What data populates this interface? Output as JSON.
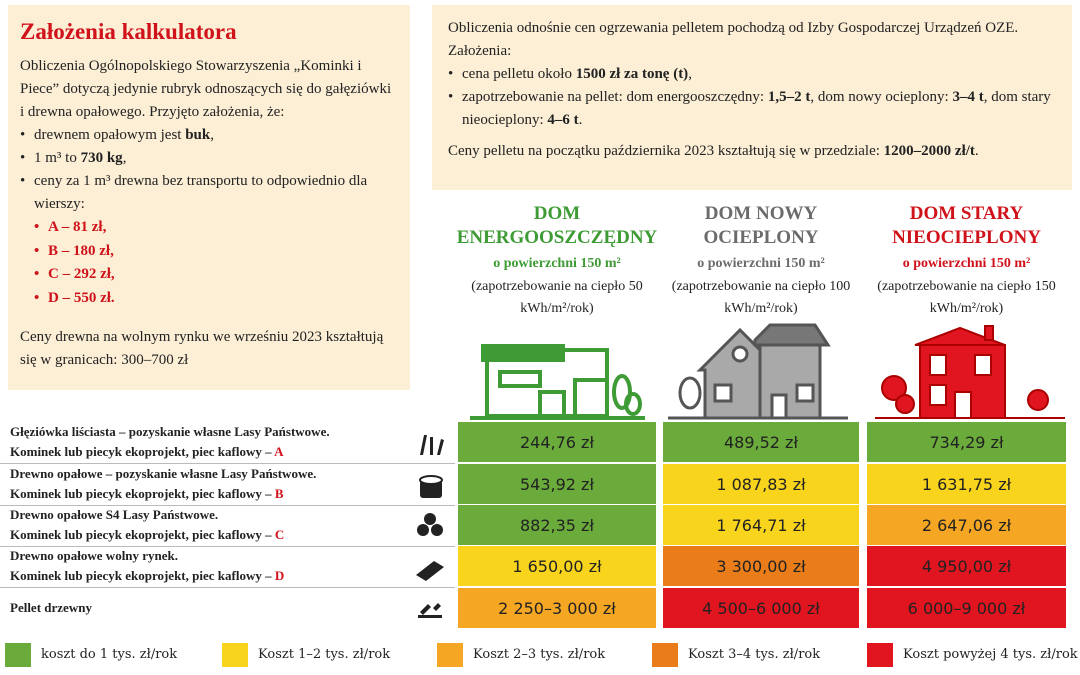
{
  "left_box": {
    "title": "Założenia kalkulatora",
    "intro": [
      "Obliczenia Ogólnopolskiego Stowarzyszenia „Kominki i Piece” dotyczą jedynie rubryk odnoszących się do gałęziówki i drewna opałowego. Przyjęto założenia, że:"
    ],
    "bullets": [
      [
        "drewnem opałowym jest ",
        "buk",
        ","
      ],
      [
        "1 m³ to ",
        "730 kg",
        ","
      ],
      [
        "ceny za 1 m³ drewna bez transportu to odpowiednio dla wierszy:"
      ]
    ],
    "prices": [
      "A – 81 zł,",
      "B – 180 zł,",
      "C – 292 zł,",
      "D – 550 zł."
    ],
    "note": [
      "Ceny drewna na wolnym rynku we wrześniu 2023 kształtują się w granicach: 300–700 zł"
    ]
  },
  "right_box": {
    "intro": [
      "Obliczenia odnośnie cen ogrzewania pelletem pochodzą od Izby Gospodarczej Urządzeń OZE. Założenia:"
    ],
    "bullets": [
      [
        "cena pelletu około ",
        "1500 zł za tonę (t)",
        ","
      ],
      [
        "zapotrzebowanie na pellet: dom energooszczędny: ",
        "1,5–2 t",
        ", dom nowy ocieplony: ",
        "3–4 t",
        ", dom stary nieocieplony: ",
        "4–6 t",
        "."
      ]
    ],
    "note": [
      "Ceny pelletu na początku października 2023 kształtują się w przedziale: ",
      "1200–2000 zł/t",
      "."
    ]
  },
  "columns": [
    {
      "title": [
        "DOM",
        "ENERGOOSZCZĘDNY"
      ],
      "color": "#3f9b35",
      "area": "o powierzchni 150 m²",
      "demand": "(zapotrzebowanie na ciepło 50 kWh/m²/rok)"
    },
    {
      "title": [
        "DOM NOWY",
        "OCIEPLONY"
      ],
      "color": "#6b6b6b",
      "area": "o powierzchni 150 m²",
      "demand": "(zapotrzebowanie na ciepło 100 kWh/m²/rok)"
    },
    {
      "title": [
        "DOM STARY",
        "NIEOCIEPLONY"
      ],
      "color": "#d0121b",
      "area": "o powierzchni 150 m²",
      "demand": "(zapotrzebowanie na ciepło 150 kWh/m²/rok)"
    }
  ],
  "rows": [
    {
      "label": [
        "Głęziówka liściasta – pozyskanie własne Lasy Państwowe.",
        "Kominek lub piecyk ekoprojekt, piec kaflowy – ",
        "A"
      ],
      "cells": [
        {
          "text": "244,76 zł",
          "color": "#6aab3b"
        },
        {
          "text": "489,52 zł",
          "color": "#6aab3b"
        },
        {
          "text": "734,29 zł",
          "color": "#6aab3b"
        }
      ]
    },
    {
      "label": [
        "Drewno opałowe – pozyskanie własne Lasy Państwowe.",
        "Kominek lub piecyk ekoprojekt, piec kaflowy – ",
        "B"
      ],
      "cells": [
        {
          "text": "543,92 zł",
          "color": "#6aab3b"
        },
        {
          "text": "1 087,83 zł",
          "color": "#f8d51c"
        },
        {
          "text": "1 631,75 zł",
          "color": "#f8d51c"
        }
      ]
    },
    {
      "label": [
        "Drewno opałowe S4 Lasy Państwowe.",
        "Kominek lub piecyk ekoprojekt, piec kaflowy – ",
        "C"
      ],
      "cells": [
        {
          "text": "882,35 zł",
          "color": "#6aab3b"
        },
        {
          "text": "1 764,71 zł",
          "color": "#f8d51c"
        },
        {
          "text": "2 647,06 zł",
          "color": "#f5a623"
        }
      ]
    },
    {
      "label": [
        "Drewno opałowe wolny rynek.",
        "Kominek lub piecyk ekoprojekt, piec kaflowy – ",
        "D"
      ],
      "cells": [
        {
          "text": "1 650,00 zł",
          "color": "#f8d51c"
        },
        {
          "text": "3 300,00 zł",
          "color": "#ea7d1a"
        },
        {
          "text": "4 950,00 zł",
          "color": "#e0151f"
        }
      ]
    },
    {
      "label": [
        "Pellet drzewny"
      ],
      "cells": [
        {
          "text": "2 250–3 000 zł",
          "color": "#f5a623"
        },
        {
          "text": "4 500–6 000 zł",
          "color": "#e0151f"
        },
        {
          "text": "6 000–9 000 zł",
          "color": "#e0151f"
        }
      ]
    }
  ],
  "legend": [
    {
      "text": "koszt do 1 tys. zł/rok",
      "color": "#6aab3b"
    },
    {
      "text": "Koszt 1–2 tys. zł/rok",
      "color": "#f8d51c"
    },
    {
      "text": "Koszt 2–3 tys. zł/rok",
      "color": "#f5a623"
    },
    {
      "text": "Koszt 3–4 tys. zł/rok",
      "color": "#ea7d1a"
    },
    {
      "text": "Koszt powyżej 4 tys. zł/rok",
      "color": "#e0151f"
    }
  ]
}
